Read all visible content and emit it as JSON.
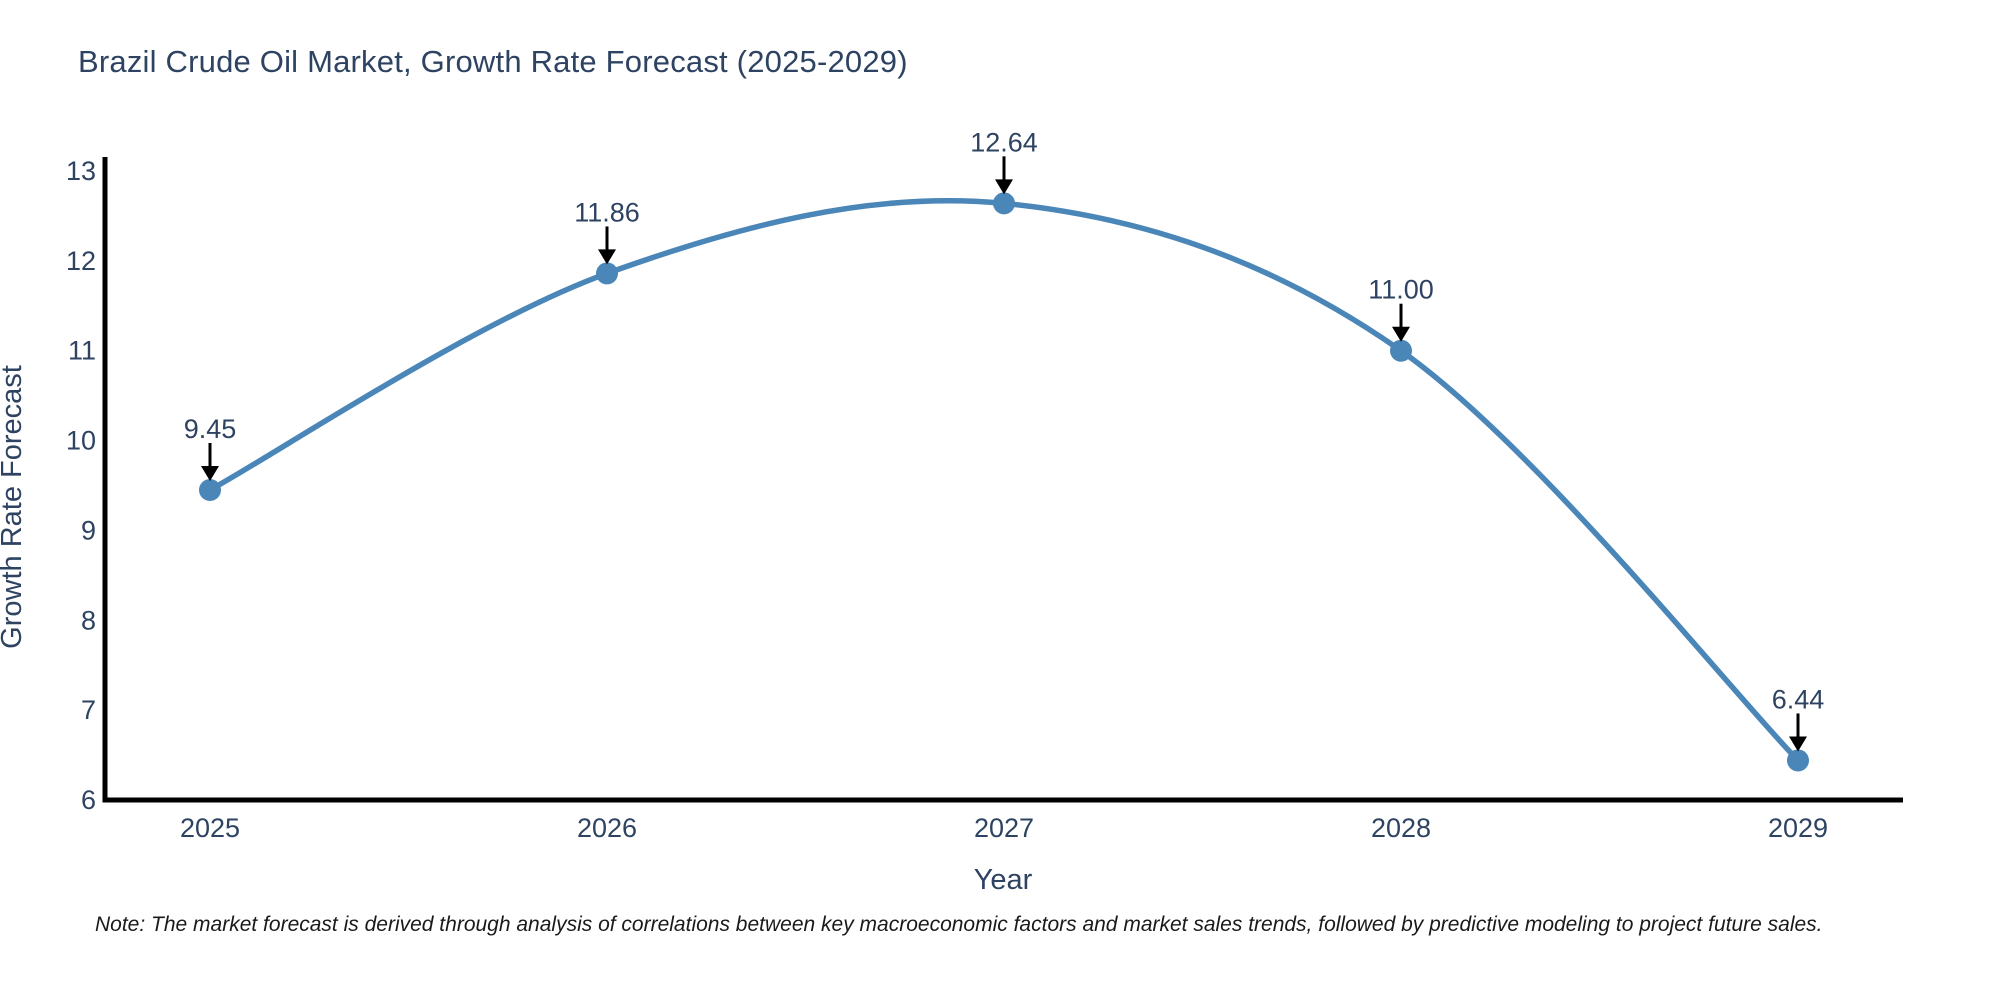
{
  "figure": {
    "title": "Brazil Crude Oil Market, Growth Rate Forecast (2025-2029)",
    "note": "Note: The market forecast is derived through analysis of correlations between key macroeconomic factors and market sales trends, followed by predictive modeling to project future sales."
  },
  "chart_data": {
    "type": "line",
    "line_shape": "spline",
    "title": "Brazil Crude Oil Market, Growth Rate Forecast (2025-2029)",
    "xlabel": "Year",
    "ylabel": "Growth Rate Forecast",
    "categories": [
      "2025",
      "2026",
      "2027",
      "2028",
      "2029"
    ],
    "values": [
      9.45,
      11.86,
      12.64,
      11.0,
      6.44
    ],
    "point_labels": [
      "9.45",
      "11.86",
      "12.64",
      "11.00",
      "6.44"
    ],
    "yticks": [
      6,
      7,
      8,
      9,
      10,
      11,
      12,
      13
    ],
    "ylim": [
      6,
      13
    ],
    "grid": false,
    "legend": "none",
    "annotations": "value above each point with downward black arrow",
    "colors": {
      "line": "#4a86b8",
      "marker": "#4a86b8",
      "text": "#2e4362",
      "axis": "#000000",
      "arrow": "#000000",
      "note_text": "#1a1a1a",
      "background": "#ffffff"
    }
  }
}
